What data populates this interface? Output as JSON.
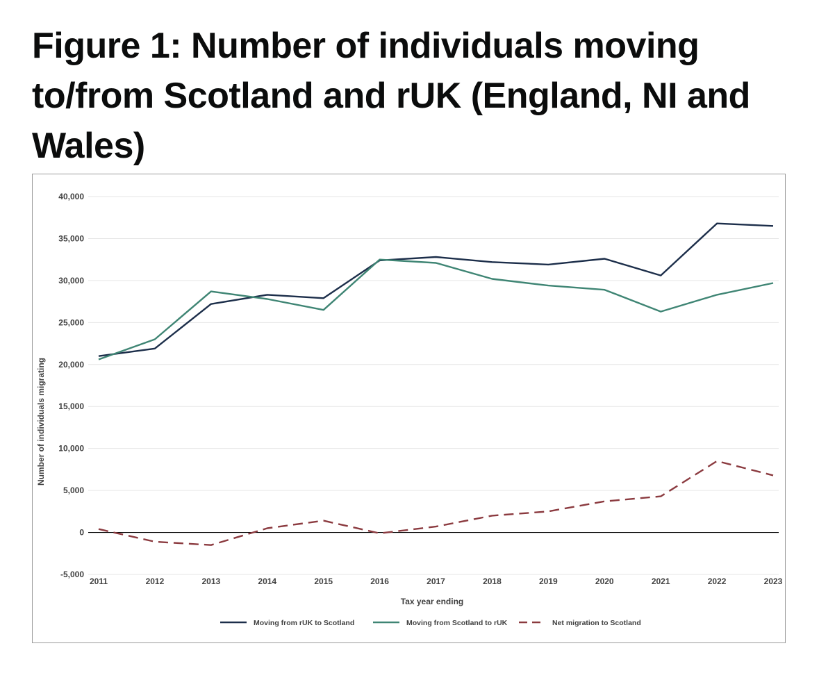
{
  "page": {
    "title": "Figure 1: Number of individuals moving to/from Scotland and rUK (England, NI and Wales)"
  },
  "chart_data": {
    "type": "line",
    "title": "Figure 1: Number of individuals moving to/from Scotland and rUK (England, NI and Wales)",
    "xlabel": "Tax year ending",
    "ylabel": "Number of individuals migrating",
    "ylim": [
      -5000,
      40000
    ],
    "yticks": [
      -5000,
      0,
      5000,
      10000,
      15000,
      20000,
      25000,
      30000,
      35000,
      40000
    ],
    "ytick_labels": [
      "-5,000",
      "0",
      "5,000",
      "10,000",
      "15,000",
      "20,000",
      "25,000",
      "30,000",
      "35,000",
      "40,000"
    ],
    "categories": [
      "2011",
      "2012",
      "2013",
      "2014",
      "2015",
      "2016",
      "2017",
      "2018",
      "2019",
      "2020",
      "2021",
      "2022",
      "2023"
    ],
    "grid": true,
    "legend_position": "bottom",
    "series": [
      {
        "name": "Moving from rUK to Scotland",
        "color": "#1c2e4a",
        "dash": "solid",
        "values": [
          21000,
          21900,
          27200,
          28300,
          27900,
          32400,
          32800,
          32200,
          31900,
          32600,
          30600,
          36800,
          36500
        ]
      },
      {
        "name": "Moving from Scotland to rUK",
        "color": "#3f8574",
        "dash": "solid",
        "values": [
          20600,
          23000,
          28700,
          27800,
          26500,
          32500,
          32100,
          30200,
          29400,
          28900,
          26300,
          28300,
          29700
        ]
      },
      {
        "name": "Net migration to Scotland",
        "color": "#8b3a3f",
        "dash": "dashed",
        "values": [
          400,
          -1100,
          -1500,
          500,
          1400,
          -100,
          700,
          2000,
          2500,
          3700,
          4300,
          8500,
          6800
        ]
      }
    ]
  }
}
